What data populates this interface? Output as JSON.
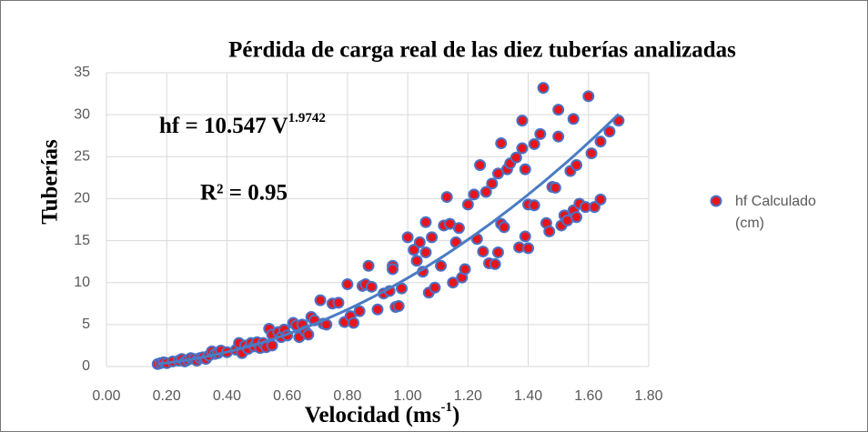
{
  "chart_data": {
    "type": "scatter",
    "title": "Pérdida de carga real de las diez tuberías analizadas",
    "x_label": {
      "text": "Velocidad (ms",
      "sup": "-1",
      "end": ")"
    },
    "y_label": "Tuberías",
    "xlim": [
      0,
      1.8
    ],
    "xticks": [
      {
        "value": 0,
        "label": "0.00"
      },
      {
        "value": 0.2,
        "label": "0.20"
      },
      {
        "value": 0.4,
        "label": "0.40"
      },
      {
        "value": 0.6,
        "label": "0.60"
      },
      {
        "value": 0.8,
        "label": "0.80"
      },
      {
        "value": 1,
        "label": "1.00"
      },
      {
        "value": 1.2,
        "label": "1.20"
      },
      {
        "value": 1.4,
        "label": "1.40"
      },
      {
        "value": 1.6,
        "label": "1.60"
      },
      {
        "value": 1.8,
        "label": "1.80"
      }
    ],
    "ylim": [
      0,
      35
    ],
    "yticks": [
      0,
      5,
      10,
      15,
      20,
      25,
      30,
      35
    ],
    "grid": true,
    "legend": "right",
    "trendline": {
      "color": "#4a7cc4",
      "label_prefix": "hf = 10.547 V",
      "coefficient": 10.547,
      "exponent": 1.9742,
      "exponent_label": "1.9742",
      "x_range": [
        0.17,
        1.7
      ],
      "r2_label": "R² = 0.95"
    },
    "series": [
      {
        "name": "hf Calculado (cm)",
        "color": "#e8141b",
        "edge_color": "#4a72c4",
        "x": [
          0.17,
          0.18,
          0.19,
          0.2,
          0.22,
          0.24,
          0.25,
          0.26,
          0.27,
          0.28,
          0.29,
          0.3,
          0.31,
          0.32,
          0.33,
          0.34,
          0.35,
          0.36,
          0.37,
          0.38,
          0.4,
          0.43,
          0.44,
          0.45,
          0.46,
          0.47,
          0.48,
          0.49,
          0.5,
          0.51,
          0.52,
          0.53,
          0.54,
          0.55,
          0.55,
          0.57,
          0.58,
          0.59,
          0.6,
          0.62,
          0.63,
          0.64,
          0.65,
          0.66,
          0.67,
          0.68,
          0.69,
          0.71,
          0.72,
          0.73,
          0.75,
          0.77,
          0.79,
          0.8,
          0.81,
          0.82,
          0.84,
          0.85,
          0.86,
          0.87,
          0.88,
          0.9,
          0.92,
          0.94,
          0.95,
          0.95,
          0.96,
          0.97,
          0.98,
          1.0,
          1.02,
          1.03,
          1.04,
          1.05,
          1.06,
          1.06,
          1.07,
          1.08,
          1.09,
          1.11,
          1.12,
          1.13,
          1.14,
          1.15,
          1.16,
          1.17,
          1.18,
          1.19,
          1.2,
          1.22,
          1.23,
          1.24,
          1.25,
          1.26,
          1.27,
          1.28,
          1.29,
          1.3,
          1.3,
          1.31,
          1.31,
          1.32,
          1.33,
          1.34,
          1.36,
          1.37,
          1.38,
          1.38,
          1.39,
          1.39,
          1.4,
          1.4,
          1.42,
          1.42,
          1.44,
          1.45,
          1.46,
          1.47,
          1.48,
          1.49,
          1.5,
          1.5,
          1.51,
          1.52,
          1.53,
          1.54,
          1.55,
          1.55,
          1.56,
          1.56,
          1.57,
          1.59,
          1.6,
          1.61,
          1.62,
          1.64,
          1.64,
          1.67,
          1.7
        ],
        "values": [
          0.3,
          0.4,
          0.5,
          0.4,
          0.6,
          0.7,
          0.9,
          0.6,
          0.8,
          1.0,
          0.9,
          0.7,
          1.0,
          1.1,
          0.9,
          1.3,
          1.8,
          1.5,
          1.6,
          1.9,
          1.7,
          2.0,
          2.8,
          1.6,
          2.5,
          2.1,
          2.8,
          2.4,
          2.9,
          2.2,
          2.8,
          2.3,
          4.5,
          2.5,
          3.8,
          4.1,
          3.5,
          4.4,
          3.7,
          5.2,
          4.9,
          3.5,
          5.0,
          4.2,
          3.8,
          5.9,
          5.5,
          7.9,
          5.1,
          5.0,
          7.5,
          7.6,
          5.3,
          9.8,
          6.0,
          5.2,
          6.6,
          9.6,
          9.8,
          12.0,
          9.5,
          6.8,
          8.7,
          9.0,
          12.0,
          11.6,
          7.1,
          7.2,
          9.3,
          15.4,
          13.9,
          12.6,
          14.8,
          11.3,
          17.2,
          13.6,
          8.8,
          15.4,
          9.4,
          12.0,
          16.8,
          20.2,
          17.0,
          10.0,
          14.8,
          16.5,
          10.6,
          11.6,
          19.3,
          20.5,
          15.2,
          24.0,
          13.7,
          20.8,
          12.3,
          21.8,
          12.2,
          13.6,
          23.0,
          26.6,
          17.0,
          16.6,
          23.5,
          24.2,
          24.9,
          14.2,
          29.3,
          26.0,
          15.5,
          23.5,
          19.3,
          14.1,
          19.2,
          26.5,
          27.7,
          33.2,
          17.1,
          16.1,
          21.4,
          21.3,
          30.6,
          27.4,
          16.8,
          18.0,
          17.4,
          23.3,
          29.5,
          18.6,
          24.0,
          17.8,
          19.4,
          19.0,
          32.2,
          25.4,
          19.0,
          26.8,
          19.9,
          28.0,
          29.3
        ]
      }
    ]
  }
}
